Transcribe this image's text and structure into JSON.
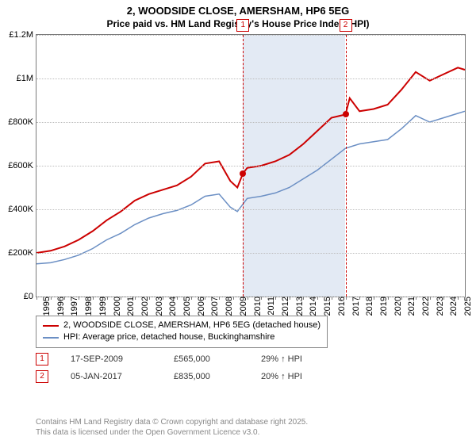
{
  "header": {
    "title": "2, WOODSIDE CLOSE, AMERSHAM, HP6 5EG",
    "subtitle": "Price paid vs. HM Land Registry's House Price Index (HPI)"
  },
  "chart": {
    "type": "line",
    "background_color": "#ffffff",
    "border_color": "#7a7a7a",
    "grid_color": "#bdbdbd",
    "highlight_band": {
      "color": "#e3eaf4",
      "x_start": 2009.7,
      "x_end": 2017.0
    },
    "xlim": [
      1995,
      2025.5
    ],
    "x_ticks": [
      1995,
      1996,
      1997,
      1998,
      1999,
      2000,
      2001,
      2002,
      2003,
      2004,
      2005,
      2006,
      2007,
      2008,
      2009,
      2010,
      2011,
      2012,
      2013,
      2014,
      2015,
      2016,
      2017,
      2018,
      2019,
      2020,
      2021,
      2022,
      2023,
      2024,
      2025
    ],
    "ylim": [
      0,
      1200000
    ],
    "y_ticks": [
      0,
      200000,
      400000,
      600000,
      800000,
      1000000,
      1200000
    ],
    "y_tick_labels": [
      "£0",
      "£200K",
      "£400K",
      "£600K",
      "£800K",
      "£1M",
      "£1.2M"
    ],
    "y_axis_fontsize": 11,
    "x_axis_fontsize": 11,
    "series": [
      {
        "name": "price_paid",
        "label": "2, WOODSIDE CLOSE, AMERSHAM, HP6 5EG (detached house)",
        "color": "#cc0000",
        "line_width": 2,
        "x": [
          1995,
          1996,
          1997,
          1998,
          1999,
          2000,
          2001,
          2002,
          2003,
          2004,
          2005,
          2006,
          2007,
          2008,
          2008.8,
          2009.3,
          2009.7,
          2010,
          2011,
          2012,
          2013,
          2014,
          2015,
          2016,
          2017,
          2017.3,
          2018,
          2019,
          2020,
          2021,
          2022,
          2023,
          2024,
          2025,
          2025.5
        ],
        "y": [
          200000,
          210000,
          230000,
          260000,
          300000,
          350000,
          390000,
          440000,
          470000,
          490000,
          510000,
          550000,
          610000,
          620000,
          530000,
          500000,
          565000,
          590000,
          600000,
          620000,
          650000,
          700000,
          760000,
          820000,
          835000,
          910000,
          850000,
          860000,
          880000,
          950000,
          1030000,
          990000,
          1020000,
          1050000,
          1040000
        ]
      },
      {
        "name": "hpi",
        "label": "HPI: Average price, detached house, Buckinghamshire",
        "color": "#6b8fc4",
        "line_width": 1.5,
        "x": [
          1995,
          1996,
          1997,
          1998,
          1999,
          2000,
          2001,
          2002,
          2003,
          2004,
          2005,
          2006,
          2007,
          2008,
          2008.8,
          2009.3,
          2010,
          2011,
          2012,
          2013,
          2014,
          2015,
          2016,
          2017,
          2018,
          2019,
          2020,
          2021,
          2022,
          2023,
          2024,
          2025,
          2025.5
        ],
        "y": [
          150000,
          155000,
          170000,
          190000,
          220000,
          260000,
          290000,
          330000,
          360000,
          380000,
          395000,
          420000,
          460000,
          470000,
          410000,
          390000,
          450000,
          460000,
          475000,
          500000,
          540000,
          580000,
          630000,
          680000,
          700000,
          710000,
          720000,
          770000,
          830000,
          800000,
          820000,
          840000,
          850000
        ]
      }
    ],
    "markers": [
      {
        "id": "1",
        "x": 2009.7,
        "y": 565000,
        "color": "#cc0000"
      },
      {
        "id": "2",
        "x": 2017.0,
        "y": 835000,
        "color": "#cc0000"
      }
    ]
  },
  "legend": {
    "items": [
      {
        "color": "#cc0000",
        "label": "2, WOODSIDE CLOSE, AMERSHAM, HP6 5EG (detached house)"
      },
      {
        "color": "#6b8fc4",
        "label": "HPI: Average price, detached house, Buckinghamshire"
      }
    ]
  },
  "transactions": {
    "rows": [
      {
        "id": "1",
        "date": "17-SEP-2009",
        "price": "£565,000",
        "pct": "29% ↑ HPI"
      },
      {
        "id": "2",
        "date": "05-JAN-2017",
        "price": "£835,000",
        "pct": "20% ↑ HPI"
      }
    ]
  },
  "footer": {
    "line1": "Contains HM Land Registry data © Crown copyright and database right 2025.",
    "line2": "This data is licensed under the Open Government Licence v3.0."
  }
}
